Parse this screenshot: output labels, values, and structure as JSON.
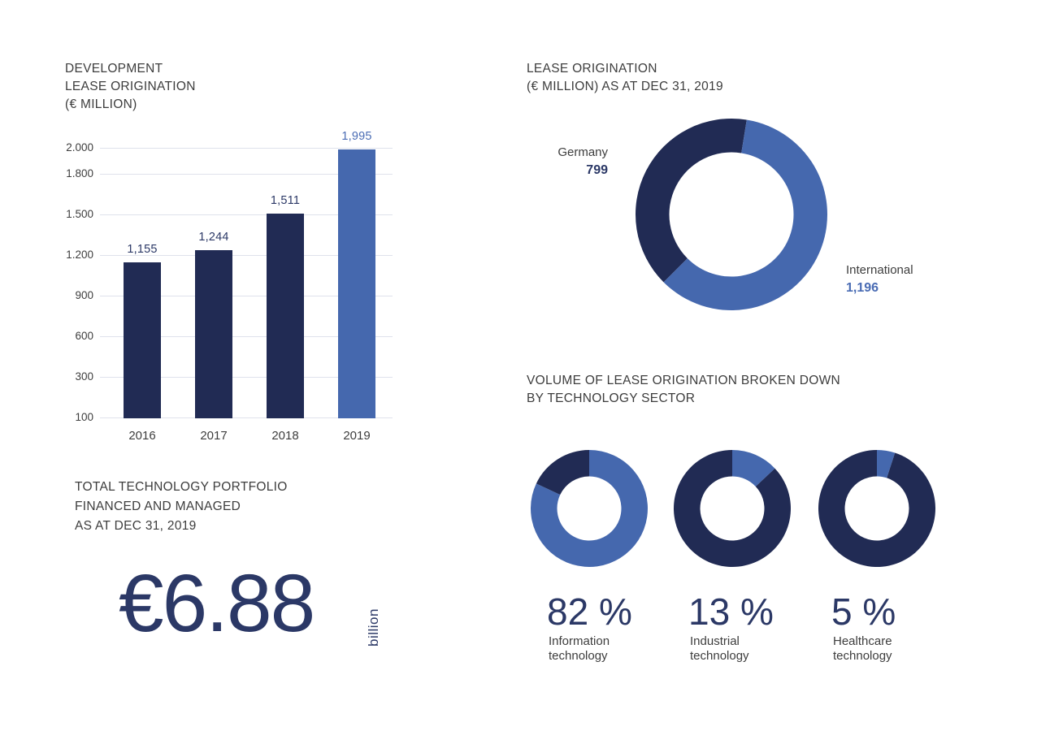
{
  "palette": {
    "navy": "#212b54",
    "blue": "#4568ae",
    "navy_text": "#2b3866",
    "blue_text": "#4a6cb4",
    "title_text": "#3d3d3d",
    "gridline": "#dfe2ec",
    "tick": "#c7cbd6",
    "background": "#ffffff"
  },
  "chart_data": [
    {
      "id": "development-lease-origination",
      "type": "bar",
      "title": "DEVELOPMENT LEASE ORIGINATION (€ MILLION)",
      "title_lines": [
        "DEVELOPMENT",
        "LEASE ORIGINATION",
        "(€ MILLION)"
      ],
      "categories": [
        "2016",
        "2017",
        "2018",
        "2019"
      ],
      "values": [
        1155,
        1244,
        1511,
        1995
      ],
      "value_labels": [
        "1,155",
        "1,244",
        "1,511",
        "1,995"
      ],
      "bar_colors": [
        "navy",
        "navy",
        "navy",
        "blue"
      ],
      "y_ticks": [
        100,
        300,
        600,
        900,
        1200,
        1500,
        1800,
        2000
      ],
      "y_tick_labels": [
        "100",
        "300",
        "600",
        "900",
        "1.200",
        "1.500",
        "1.800",
        "2.000"
      ],
      "ylim": [
        100,
        2000
      ],
      "grid": true,
      "legend": false
    },
    {
      "id": "lease-origination-by-region",
      "type": "donut",
      "title": "LEASE ORIGINATION (€ MILLION) AS AT DEC 31, 2019",
      "title_lines": [
        "LEASE ORIGINATION",
        "(€ MILLION) AS AT DEC 31, 2019"
      ],
      "total": 1995,
      "start_deg": 225,
      "slices": [
        {
          "label": "Germany",
          "value": 799,
          "value_label": "799",
          "color": "navy"
        },
        {
          "label": "International",
          "value": 1196,
          "value_label": "1,196",
          "color": "blue"
        }
      ]
    },
    {
      "id": "volume-by-technology-sector",
      "type": "donut-set",
      "title": "VOLUME OF LEASE ORIGINATION BROKEN DOWN BY TECHNOLOGY SECTOR",
      "title_lines": [
        "VOLUME OF LEASE ORIGINATION BROKEN DOWN",
        "BY TECHNOLOGY SECTOR"
      ],
      "donuts": [
        {
          "pct": 82,
          "pct_label": "82 %",
          "label": "Information technology",
          "label_lines": [
            "Information",
            "technology"
          ],
          "pct_color": "blue",
          "rest_color": "navy"
        },
        {
          "pct": 13,
          "pct_label": "13 %",
          "label": "Industrial technology",
          "label_lines": [
            "Industrial",
            "technology"
          ],
          "pct_color": "blue",
          "rest_color": "navy"
        },
        {
          "pct": 5,
          "pct_label": "5 %",
          "label": "Healthcare technology",
          "label_lines": [
            "Healthcare",
            "technology"
          ],
          "pct_color": "blue",
          "rest_color": "navy"
        }
      ]
    }
  ],
  "total_portfolio": {
    "title_lines": [
      "TOTAL TECHNOLOGY PORTFOLIO",
      "FINANCED AND MANAGED",
      "AS AT DEC 31, 2019"
    ],
    "figure": "€6.88",
    "unit": "billion"
  }
}
